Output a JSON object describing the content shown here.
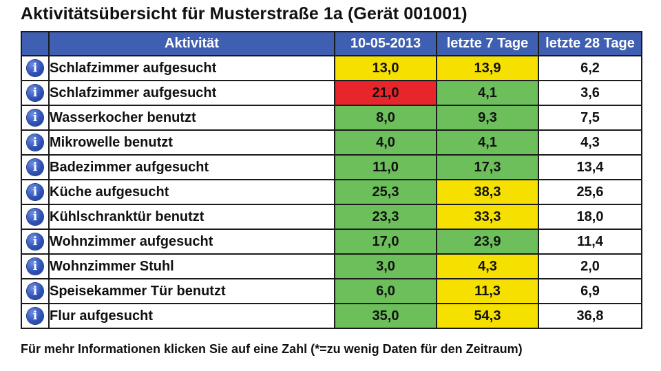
{
  "title": "Aktivitätsübersicht für Musterstraße 1a (Gerät 001001)",
  "colors": {
    "header_bg": "#3f5fb3",
    "green": "#6cbf5b",
    "yellow": "#f6e000",
    "red": "#e8252a",
    "white": "#ffffff"
  },
  "table": {
    "headers": {
      "activity": "Aktivität",
      "date": "10-05-2013",
      "last7": "letzte 7 Tage",
      "last28": "letzte 28 Tage"
    },
    "rows": [
      {
        "icon": "info-icon",
        "activity": "Schlafzimmer aufgesucht",
        "date": "13,0",
        "date_status": "yellow",
        "last7": "13,9",
        "last7_status": "yellow",
        "last28": "6,2"
      },
      {
        "icon": "info-icon",
        "activity": "Schlafzimmer aufgesucht",
        "date": "21,0",
        "date_status": "red",
        "last7": "4,1",
        "last7_status": "green",
        "last28": "3,6"
      },
      {
        "icon": "info-icon",
        "activity": "Wasserkocher benutzt",
        "date": "8,0",
        "date_status": "green",
        "last7": "9,3",
        "last7_status": "green",
        "last28": "7,5"
      },
      {
        "icon": "info-icon",
        "activity": "Mikrowelle benutzt",
        "date": "4,0",
        "date_status": "green",
        "last7": "4,1",
        "last7_status": "green",
        "last28": "4,3"
      },
      {
        "icon": "info-icon",
        "activity": "Badezimmer aufgesucht",
        "date": "11,0",
        "date_status": "green",
        "last7": "17,3",
        "last7_status": "green",
        "last28": "13,4"
      },
      {
        "icon": "info-icon",
        "activity": "Küche aufgesucht",
        "date": "25,3",
        "date_status": "green",
        "last7": "38,3",
        "last7_status": "yellow",
        "last28": "25,6"
      },
      {
        "icon": "info-icon",
        "activity": "Kühlschranktür benutzt",
        "date": "23,3",
        "date_status": "green",
        "last7": "33,3",
        "last7_status": "yellow",
        "last28": "18,0"
      },
      {
        "icon": "info-icon",
        "activity": "Wohnzimmer aufgesucht",
        "date": "17,0",
        "date_status": "green",
        "last7": "23,9",
        "last7_status": "green",
        "last28": "11,4"
      },
      {
        "icon": "info-icon",
        "activity": "Wohnzimmer Stuhl",
        "date": "3,0",
        "date_status": "green",
        "last7": "4,3",
        "last7_status": "yellow",
        "last28": "2,0"
      },
      {
        "icon": "info-icon",
        "activity": "Speisekammer Tür benutzt",
        "date": "6,0",
        "date_status": "green",
        "last7": "11,3",
        "last7_status": "yellow",
        "last28": "6,9"
      },
      {
        "icon": "info-icon",
        "activity": "Flur aufgesucht",
        "date": "35,0",
        "date_status": "green",
        "last7": "54,3",
        "last7_status": "yellow",
        "last28": "36,8"
      }
    ]
  },
  "footer": "Für mehr Informationen klicken Sie auf eine Zahl  (*=zu wenig Daten für den Zeitraum)"
}
